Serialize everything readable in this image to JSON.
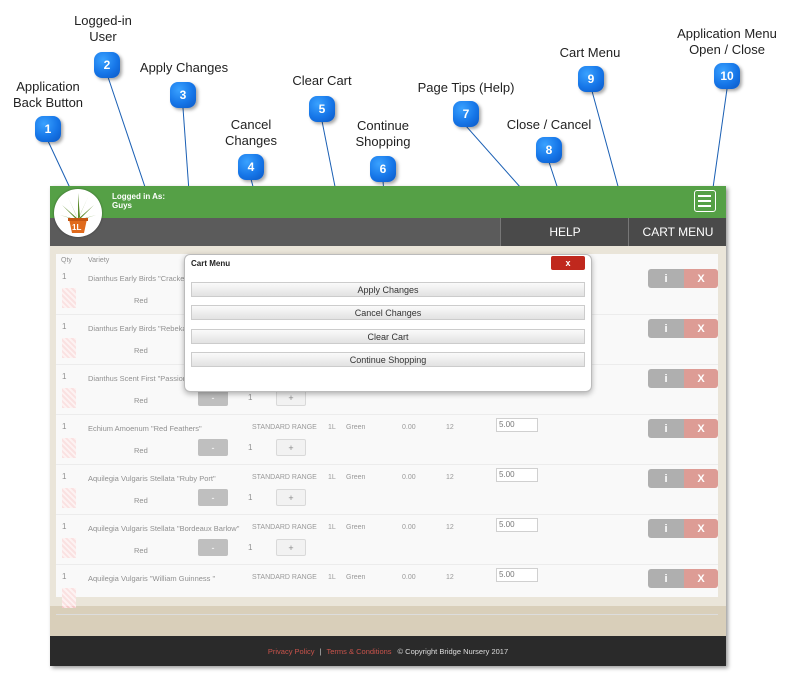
{
  "callouts": [
    {
      "num": "1",
      "label_lines": [
        "Application",
        "Back Button"
      ]
    },
    {
      "num": "2",
      "label_lines": [
        "Logged-in",
        "User"
      ]
    },
    {
      "num": "3",
      "label_lines": [
        "Apply Changes"
      ]
    },
    {
      "num": "4",
      "label_lines": [
        "Cancel",
        "Changes"
      ]
    },
    {
      "num": "5",
      "label_lines": [
        "Clear Cart"
      ]
    },
    {
      "num": "6",
      "label_lines": [
        "Continue",
        "Shopping"
      ]
    },
    {
      "num": "7",
      "label_lines": [
        "Page Tips (Help)"
      ]
    },
    {
      "num": "8",
      "label_lines": [
        "Close / Cancel"
      ]
    },
    {
      "num": "9",
      "label_lines": [
        "Cart Menu"
      ]
    },
    {
      "num": "10",
      "label_lines": [
        "Application Menu",
        "Open / Close"
      ]
    }
  ],
  "header": {
    "logo_badge": "1L",
    "logged_in_label": "Logged in As:",
    "user_name": "Guys",
    "help_label": "HELP",
    "cart_menu_label": "CART MENU"
  },
  "table": {
    "headers": {
      "qty": "Qty",
      "variety": "Variety"
    },
    "rows": [
      {
        "qty": "1",
        "variety": "Dianthus Early Birds \"Cracke",
        "range": "",
        "size": "",
        "color": "",
        "price": "",
        "stock": "",
        "value": "",
        "label": "Red",
        "show_stepper": false
      },
      {
        "qty": "1",
        "variety": "Dianthus Early Birds \"Rebeka",
        "range": "",
        "size": "",
        "color": "",
        "price": "",
        "stock": "",
        "value": "",
        "label": "Red",
        "show_stepper": false
      },
      {
        "qty": "1",
        "variety": "Dianthus Scent First \"Passion",
        "range": "",
        "size": "",
        "color": "",
        "price": "",
        "stock": "",
        "value": "",
        "label": "Red",
        "show_stepper": true
      },
      {
        "qty": "1",
        "variety": "Echium Amoenum \"Red Feathers\"",
        "range": "STANDARD RANGE",
        "size": "1L",
        "color": "Green",
        "price": "0.00",
        "stock": "12",
        "value": "5.00",
        "label": "Red",
        "show_stepper": true
      },
      {
        "qty": "1",
        "variety": "Aquilegia Vulgaris Stellata \"Ruby Port\"",
        "range": "STANDARD RANGE",
        "size": "1L",
        "color": "Green",
        "price": "0.00",
        "stock": "12",
        "value": "5.00",
        "label": "Red",
        "show_stepper": true
      },
      {
        "qty": "1",
        "variety": "Aquilegia Vulgaris Stellata \"Bordeaux Barlow\"",
        "range": "STANDARD RANGE",
        "size": "1L",
        "color": "Green",
        "price": "0.00",
        "stock": "12",
        "value": "5.00",
        "label": "Red",
        "show_stepper": true
      },
      {
        "qty": "1",
        "variety": "Aquilegia Vulgaris \"William Guinness \"",
        "range": "STANDARD RANGE",
        "size": "1L",
        "color": "Green",
        "price": "0.00",
        "stock": "12",
        "value": "5.00",
        "label": "",
        "show_stepper": false
      }
    ],
    "stepper": {
      "minus": "-",
      "plus": "+",
      "qty": "1"
    },
    "info_btn": "i",
    "delete_btn": "X"
  },
  "modal": {
    "title": "Cart Menu",
    "close_label": "x",
    "buttons": [
      "Apply Changes",
      "Cancel Changes",
      "Clear Cart",
      "Continue Shopping"
    ]
  },
  "footer": {
    "privacy": "Privacy Policy",
    "separator": "|",
    "terms": "Terms & Conditions",
    "copyright": "© Copyright Bridge Nursery 2017"
  },
  "colors": {
    "green_bar": "#55a046",
    "callout_blue": "#1676e8",
    "delete_red": "#c24b3f",
    "footer_link": "#c9534b"
  }
}
